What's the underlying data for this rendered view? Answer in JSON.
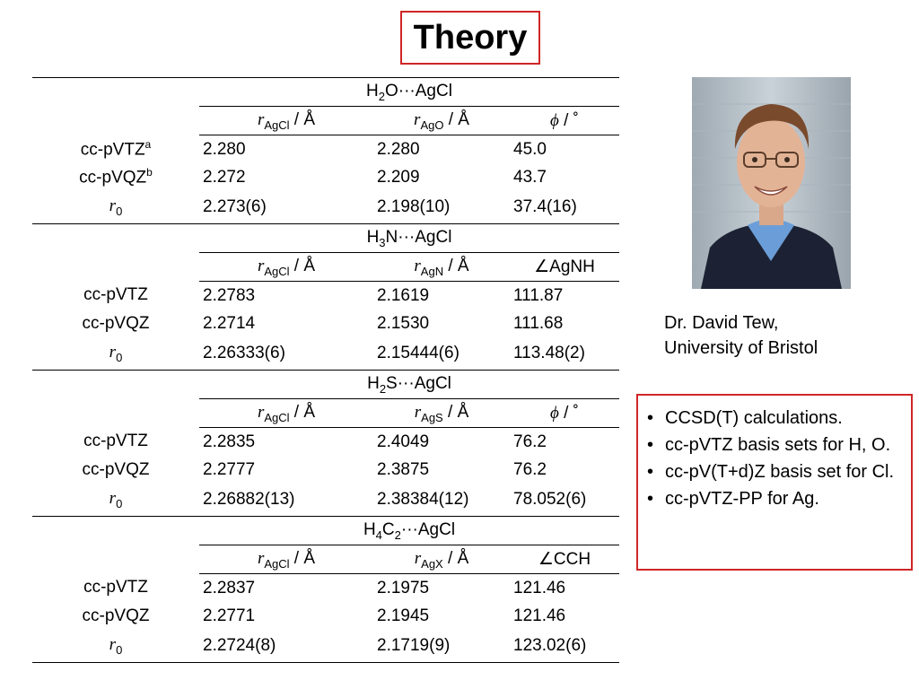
{
  "title": "Theory",
  "symbols": {
    "cdots": "···",
    "angle": "∠",
    "phi": "ϕ",
    "deg": "˚",
    "angstrom": "Å",
    "bullet": "•"
  },
  "sections": [
    {
      "molecule": {
        "a": "H",
        "a_sub": "2",
        "b": "O",
        "b_sub": "",
        "tail": "AgCl"
      },
      "headers": [
        {
          "italic": "r",
          "sub": "AgCl",
          "suffix": " / Å"
        },
        {
          "italic": "r",
          "sub": "AgO",
          "suffix": " / Å"
        },
        {
          "prefix": "",
          "italic": "ϕ",
          "sub": "",
          "suffix": " / ˚"
        }
      ],
      "rows": [
        {
          "label": "cc-pVTZ",
          "label_sup": "a",
          "label_sub": "",
          "values": [
            "2.280",
            "2.280",
            "45.0"
          ]
        },
        {
          "label": "cc-pVQZ",
          "label_sup": "b",
          "label_sub": "",
          "values": [
            "2.272",
            "2.209",
            "43.7"
          ]
        },
        {
          "label": "r",
          "label_sup": "",
          "label_sub": "0",
          "values": [
            "2.273(6)",
            "2.198(10)",
            "37.4(16)"
          ]
        }
      ]
    },
    {
      "molecule": {
        "a": "H",
        "a_sub": "3",
        "b": "N",
        "b_sub": "",
        "tail": "AgCl"
      },
      "headers": [
        {
          "italic": "r",
          "sub": "AgCl",
          "suffix": " / Å"
        },
        {
          "italic": "r",
          "sub": "AgN",
          "suffix": " / Å"
        },
        {
          "prefix": "∠AgNH",
          "italic": "",
          "sub": "",
          "suffix": ""
        }
      ],
      "rows": [
        {
          "label": "cc-pVTZ",
          "label_sup": "",
          "label_sub": "",
          "values": [
            "2.2783",
            "2.1619",
            "111.87"
          ]
        },
        {
          "label": "cc-pVQZ",
          "label_sup": "",
          "label_sub": "",
          "values": [
            "2.2714",
            "2.1530",
            "111.68"
          ]
        },
        {
          "label": "r",
          "label_sup": "",
          "label_sub": "0",
          "values": [
            "2.26333(6)",
            "2.15444(6)",
            "113.48(2)"
          ]
        }
      ]
    },
    {
      "molecule": {
        "a": "H",
        "a_sub": "2",
        "b": "S",
        "b_sub": "",
        "tail": "AgCl"
      },
      "headers": [
        {
          "italic": "r",
          "sub": "AgCl",
          "suffix": " / Å"
        },
        {
          "italic": "r",
          "sub": "AgS",
          "suffix": " / Å"
        },
        {
          "prefix": "",
          "italic": "ϕ",
          "sub": "",
          "suffix": " / ˚"
        }
      ],
      "rows": [
        {
          "label": "cc-pVTZ",
          "label_sup": "",
          "label_sub": "",
          "values": [
            "2.2835",
            "2.4049",
            "76.2"
          ]
        },
        {
          "label": "cc-pVQZ",
          "label_sup": "",
          "label_sub": "",
          "values": [
            "2.2777",
            "2.3875",
            "76.2"
          ]
        },
        {
          "label": "r",
          "label_sup": "",
          "label_sub": "0",
          "values": [
            "2.26882(13)",
            "2.38384(12)",
            "78.052(6)"
          ]
        }
      ]
    },
    {
      "molecule": {
        "a": "H",
        "a_sub": "4",
        "b": "C",
        "b_sub": "2",
        "tail": "AgCl"
      },
      "headers": [
        {
          "italic": "r",
          "sub": "AgCl",
          "suffix": " / Å"
        },
        {
          "italic": "r",
          "sub": "AgX",
          "suffix": " / Å"
        },
        {
          "prefix": "∠CCH",
          "italic": "",
          "sub": "",
          "suffix": ""
        }
      ],
      "rows": [
        {
          "label": "cc-pVTZ",
          "label_sup": "",
          "label_sub": "",
          "values": [
            "2.2837",
            "2.1975",
            "121.46"
          ]
        },
        {
          "label": "cc-pVQZ",
          "label_sup": "",
          "label_sub": "",
          "values": [
            "2.2771",
            "2.1945",
            "121.46"
          ]
        },
        {
          "label": "r",
          "label_sup": "",
          "label_sub": "0",
          "values": [
            "2.2724(8)",
            "2.1719(9)",
            "123.02(6)"
          ]
        }
      ]
    }
  ],
  "caption": {
    "line1": "Dr. David Tew,",
    "line2": "University of Bristol"
  },
  "notes": [
    "CCSD(T) calculations.",
    "cc-pVTZ basis sets for H, O.",
    "cc-pV(T+d)Z basis set for Cl.",
    "cc-pVTZ-PP for Ag."
  ],
  "colors": {
    "accent_border": "#d02626",
    "photo_background": "#b8c4cc",
    "shirt": "#6b9ed8",
    "sweater": "#1c2233"
  }
}
